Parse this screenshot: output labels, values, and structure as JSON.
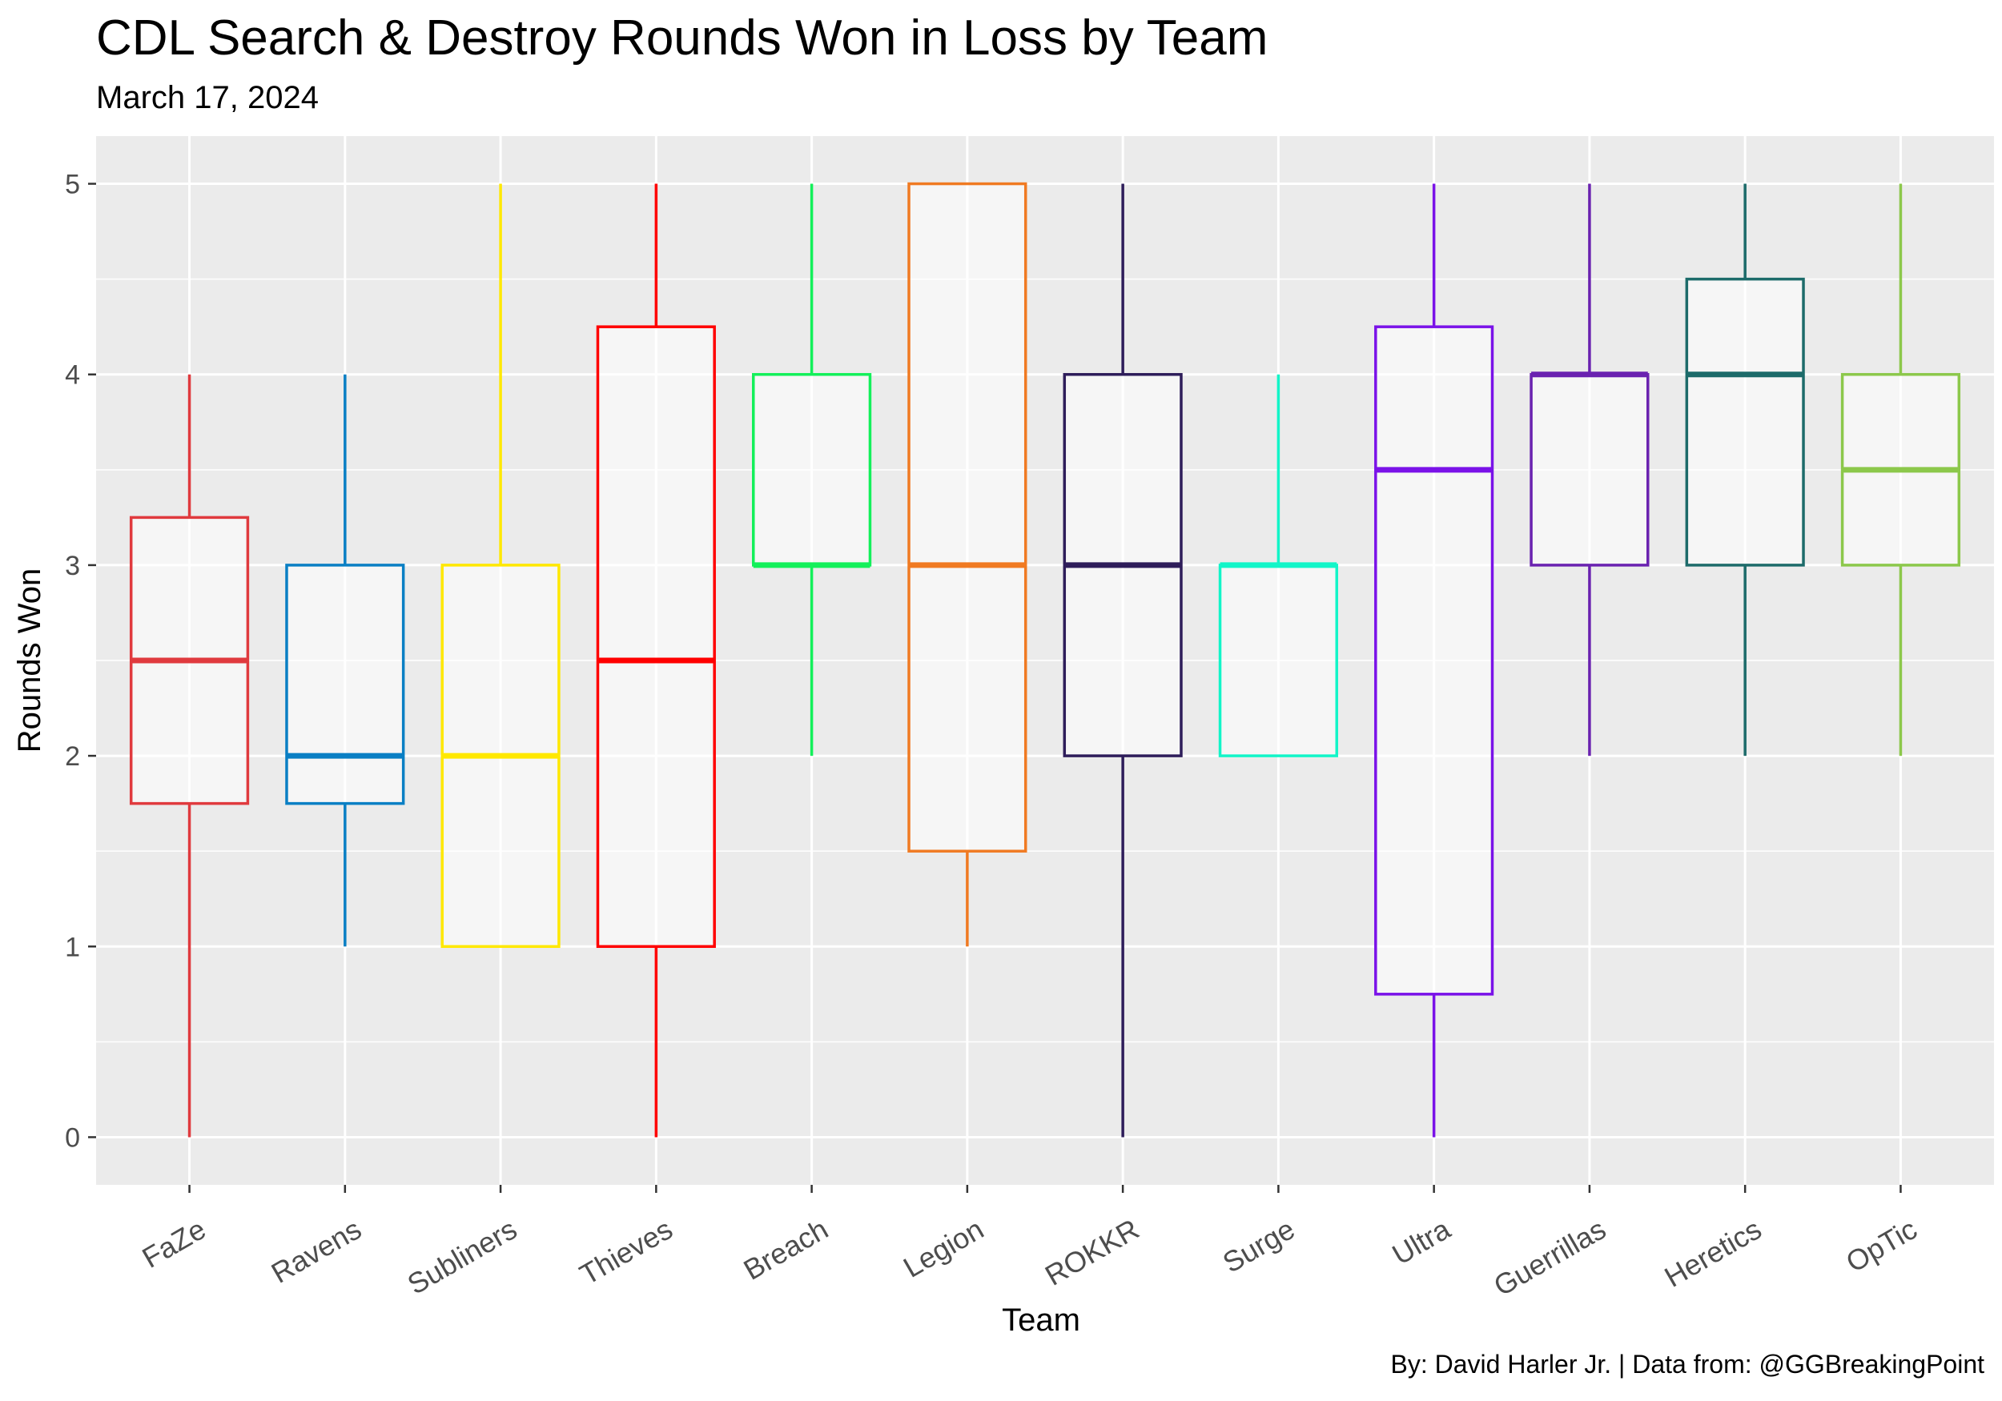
{
  "title": "CDL Search & Destroy Rounds Won in Loss by Team",
  "subtitle": "March 17, 2024",
  "caption": "By: David Harler Jr. | Data from: @GGBreakingPoint",
  "chart_data": {
    "type": "boxplot",
    "xlabel": "Team",
    "ylabel": "Rounds Won",
    "ylim": [
      -0.25,
      5.25
    ],
    "y_ticks": [
      0,
      1,
      2,
      3,
      4,
      5
    ],
    "grid": true,
    "legend": "none",
    "series": [
      {
        "category": "FaZe",
        "color": "#E03A3E",
        "min": 0,
        "q1": 1.75,
        "median": 2.5,
        "q3": 3.25,
        "max": 4
      },
      {
        "category": "Ravens",
        "color": "#0A7FC4",
        "min": 1,
        "q1": 1.75,
        "median": 2,
        "q3": 3,
        "max": 4
      },
      {
        "category": "Subliners",
        "color": "#FFE800",
        "min": 1,
        "q1": 1,
        "median": 2,
        "q3": 3,
        "max": 5
      },
      {
        "category": "Thieves",
        "color": "#FF0000",
        "min": 0,
        "q1": 1,
        "median": 2.5,
        "q3": 4.25,
        "max": 5
      },
      {
        "category": "Breach",
        "color": "#13F05A",
        "min": 2,
        "q1": 3,
        "median": 3,
        "q3": 4,
        "max": 5
      },
      {
        "category": "Legion",
        "color": "#F07A22",
        "min": 1,
        "q1": 1.5,
        "median": 3,
        "q3": 5,
        "max": 5
      },
      {
        "category": "ROKKR",
        "color": "#2E1D5A",
        "min": 0,
        "q1": 2,
        "median": 3,
        "q3": 4,
        "max": 5
      },
      {
        "category": "Surge",
        "color": "#12F5C8",
        "min": 2,
        "q1": 2,
        "median": 3,
        "q3": 3,
        "max": 4
      },
      {
        "category": "Ultra",
        "color": "#7A12E8",
        "min": 0,
        "q1": 0.75,
        "median": 3.5,
        "q3": 4.25,
        "max": 5
      },
      {
        "category": "Guerrillas",
        "color": "#6A22B0",
        "min": 2,
        "q1": 3,
        "median": 4,
        "q3": 4,
        "max": 5
      },
      {
        "category": "Heretics",
        "color": "#1D6B6A",
        "min": 2,
        "q1": 3,
        "median": 4,
        "q3": 4.5,
        "max": 5
      },
      {
        "category": "OpTic",
        "color": "#8CC84B",
        "min": 2,
        "q1": 3,
        "median": 3.5,
        "q3": 4,
        "max": 5
      }
    ]
  }
}
